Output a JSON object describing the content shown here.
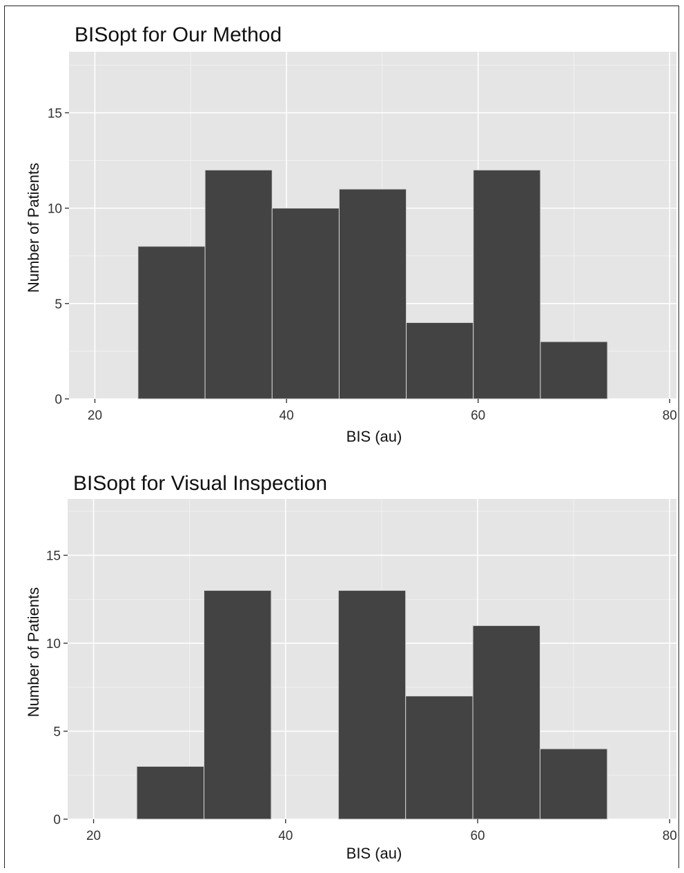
{
  "colors": {
    "panel_bg": "#e5e5e5",
    "grid_major": "#ffffff",
    "grid_minor": "#f2f2f2",
    "bar_fill": "#434343",
    "bar_edge": "#d6d6d6"
  },
  "chart_data": [
    {
      "type": "bar",
      "title": "BISopt for Our Method",
      "xlabel": "BIS (au)",
      "ylabel": "Number of Patients",
      "bin_edges": [
        24.5,
        31.5,
        38.5,
        45.5,
        52.5,
        59.5,
        66.5,
        73.5
      ],
      "values": [
        8,
        12,
        10,
        11,
        4,
        12,
        3
      ],
      "xlim": [
        17.3,
        80.7
      ],
      "ylim": [
        0,
        18.2
      ],
      "xticks": [
        20,
        40,
        60,
        80
      ],
      "yticks": [
        0,
        5,
        10,
        15
      ],
      "grid": true
    },
    {
      "type": "bar",
      "title": "BISopt for Visual Inspection",
      "xlabel": "BIS (au)",
      "ylabel": "Number of Patients",
      "bin_edges": [
        24.5,
        31.5,
        38.5,
        45.5,
        52.5,
        59.5,
        66.5,
        73.5
      ],
      "values": [
        3,
        13,
        0,
        13,
        7,
        11,
        4
      ],
      "xlim": [
        17.3,
        80.7
      ],
      "ylim": [
        0,
        18.2
      ],
      "xticks": [
        20,
        40,
        60,
        80
      ],
      "yticks": [
        0,
        5,
        10,
        15
      ],
      "grid": true
    }
  ]
}
